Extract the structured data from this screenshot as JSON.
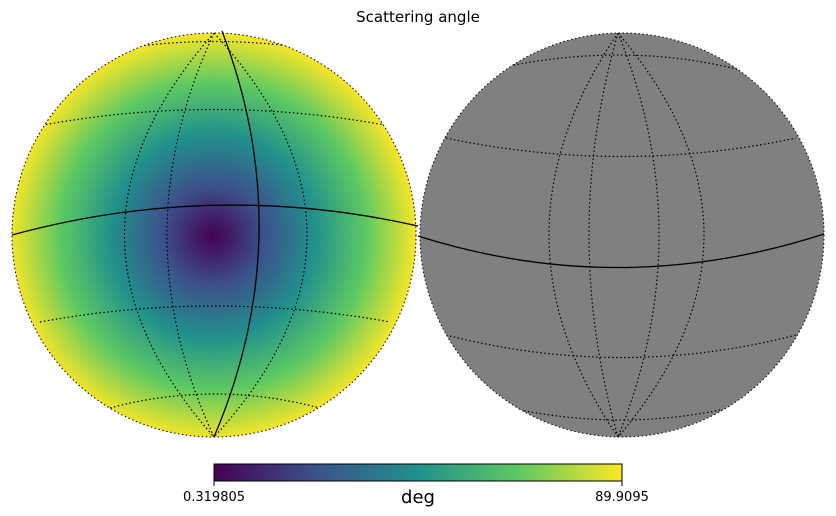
{
  "chart_data": {
    "type": "heatmap",
    "projection": "orthographic",
    "title": "Scattering angle",
    "panels": [
      {
        "name": "left-hemisphere",
        "filled": true
      },
      {
        "name": "right-hemisphere",
        "filled": false,
        "fill_color": "#808080"
      }
    ],
    "colormap": "viridis",
    "colormap_stops": [
      "#440154",
      "#3b528b",
      "#21918c",
      "#5ec962",
      "#fde725"
    ],
    "colorbar": {
      "min_label": "0.319805",
      "max_label": "89.9095",
      "unit_label": "deg",
      "range": [
        0.319805,
        89.9095
      ]
    },
    "graticule": "on"
  }
}
